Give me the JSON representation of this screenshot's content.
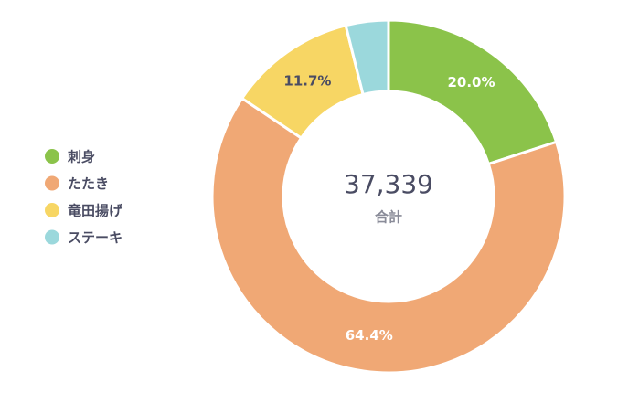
{
  "chart_data": {
    "type": "donut",
    "categories": [
      "刺身",
      "たたき",
      "竜田揚げ",
      "ステーキ"
    ],
    "values": [
      20.0,
      64.4,
      11.7,
      3.9
    ],
    "value_labels": [
      "20.0%",
      "64.4%",
      "11.7%",
      null
    ],
    "colors": [
      "#8bc34a",
      "#f0a875",
      "#f7d664",
      "#9bd8dc"
    ],
    "center_label": "37,339",
    "center_sublabel": "合計",
    "legend": "left"
  }
}
